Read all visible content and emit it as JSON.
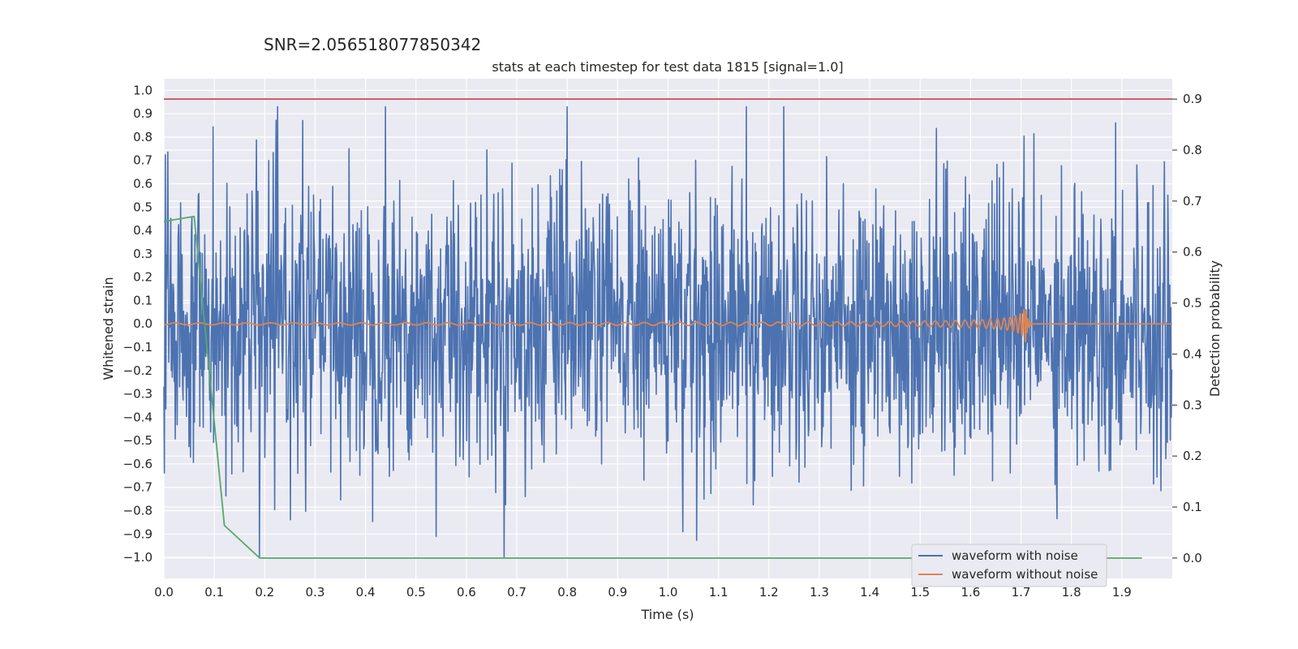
{
  "figure_text": "SNR=2.056518077850342",
  "chart_data": {
    "type": "line",
    "title": "stats at each timestep for test data 1815 [signal=1.0]",
    "xlabel": "Time (s)",
    "ylabel": "Whitened strain",
    "y2label": "Detection probability",
    "xlim": [
      0.0,
      2.0
    ],
    "ylim": [
      -1.09,
      1.05
    ],
    "y2lim": [
      -0.04,
      0.94
    ],
    "xticks": [
      "0.0",
      "0.1",
      "0.2",
      "0.3",
      "0.4",
      "0.5",
      "0.6",
      "0.7",
      "0.8",
      "0.9",
      "1.0",
      "1.1",
      "1.2",
      "1.3",
      "1.4",
      "1.5",
      "1.6",
      "1.7",
      "1.8",
      "1.9"
    ],
    "yticks": [
      "1.0",
      "0.9",
      "0.8",
      "0.7",
      "0.6",
      "0.5",
      "0.4",
      "0.3",
      "0.2",
      "0.1",
      "0.0",
      "−0.1",
      "−0.2",
      "−0.3",
      "−0.4",
      "−0.5",
      "−0.6",
      "−0.7",
      "−0.8",
      "−0.9",
      "−1.0"
    ],
    "y2ticks": [
      "0.9",
      "0.8",
      "0.7",
      "0.6",
      "0.5",
      "0.4",
      "0.3",
      "0.2",
      "0.1",
      "0.0"
    ],
    "grid": true,
    "legend_position": "bottom-right",
    "series": [
      {
        "name": "waveform with noise",
        "axis": "left",
        "color": "#4c72b0",
        "generator": "noise",
        "n_points": 2048,
        "amplitude_std": 0.3,
        "value_range": [
          -1.0,
          0.93
        ],
        "note_visible_extremes": [
          [
            0.44,
            0.93
          ],
          [
            0.19,
            -1.0
          ],
          [
            0.54,
            -0.91
          ],
          [
            1.03,
            -0.89
          ]
        ]
      },
      {
        "name": "waveform without noise",
        "axis": "left",
        "color": "#dd8452",
        "generator": "chirp",
        "t_merger": 1.71,
        "peak_amplitude": 0.1
      },
      {
        "name": "",
        "axis": "right",
        "color": "#55a868",
        "x": [
          0.0,
          0.06,
          0.12,
          0.19,
          1.94
        ],
        "y": [
          0.66,
          0.67,
          0.064,
          0.0,
          0.0
        ]
      },
      {
        "name": "",
        "axis": "right",
        "color": "#c44e52",
        "type": "hline",
        "y": 0.9
      }
    ]
  },
  "colors": {
    "plot_background": "#eaeaf2",
    "grid": "#ffffff",
    "text": "#262626"
  }
}
